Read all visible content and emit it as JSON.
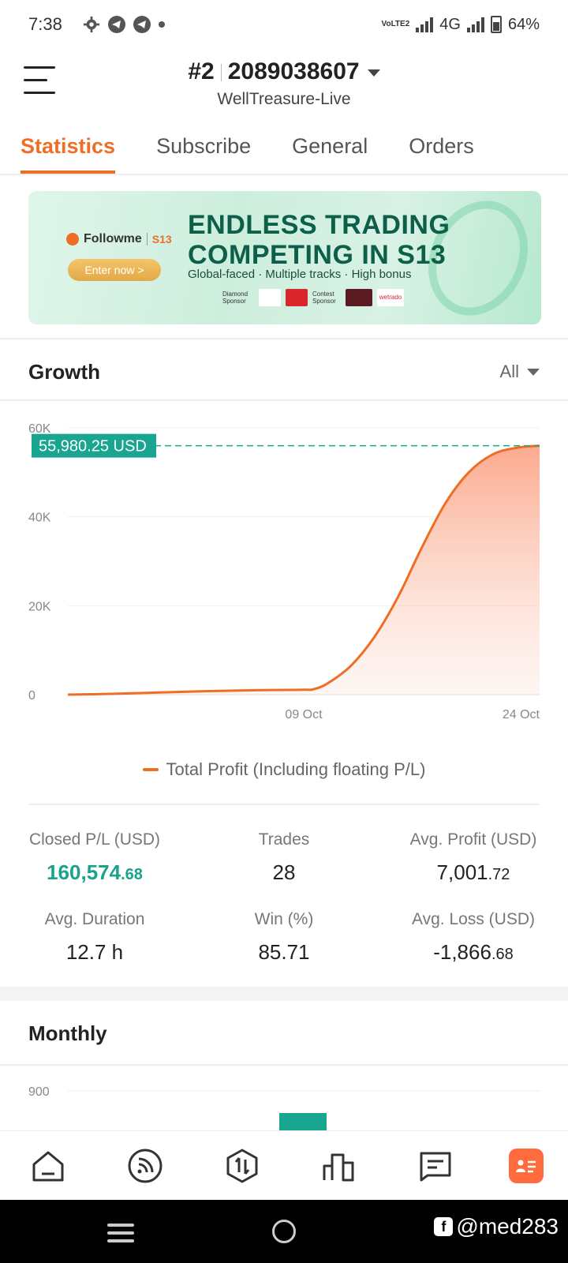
{
  "status_bar": {
    "time": "7:38",
    "network_label": "4G",
    "volte_label": "VoLTE2",
    "battery": "64%"
  },
  "header": {
    "account_rank": "#2",
    "account_number": "2089038607",
    "server": "WellTreasure-Live"
  },
  "tabs": [
    {
      "label": "Statistics",
      "active": true
    },
    {
      "label": "Subscribe",
      "active": false
    },
    {
      "label": "General",
      "active": false
    },
    {
      "label": "Orders",
      "active": false
    }
  ],
  "banner": {
    "brand": "Followme",
    "brand_badge": "S13",
    "cta": "Enter now >",
    "headline_line1": "ENDLESS TRADING",
    "headline_line2": "COMPETING IN S13",
    "subline": "Global-faced · Multiple tracks · High bonus",
    "sponsor_label_1": "Diamond Sponsor",
    "sponsor_label_2": "Contest Sponsor",
    "sponsor_logo_text": "wetrado"
  },
  "growth": {
    "title": "Growth",
    "range": "All",
    "legend": "Total Profit (Including floating P/L)"
  },
  "chart_data": {
    "type": "area",
    "title": "",
    "xlabel": "",
    "ylabel": "",
    "ylim": [
      0,
      60000
    ],
    "y_ticks": [
      "0",
      "20K",
      "40K",
      "60K"
    ],
    "x_ticks": [
      "09 Oct",
      "24 Oct"
    ],
    "current_value_label": "55,980.25 USD",
    "current_value": 55980.25,
    "series": [
      {
        "name": "Total Profit (Including floating P/L)",
        "x": [
          0,
          0.1,
          0.2,
          0.3,
          0.4,
          0.5,
          0.52,
          0.55,
          0.6,
          0.65,
          0.7,
          0.75,
          0.8,
          0.85,
          0.9,
          0.95,
          1.0
        ],
        "values": [
          0,
          200,
          500,
          800,
          1000,
          1100,
          1200,
          2500,
          6500,
          13000,
          22000,
          33000,
          43000,
          50000,
          54000,
          55500,
          55980.25
        ]
      }
    ]
  },
  "stats": {
    "closed_pl_label": "Closed P/L (USD)",
    "closed_pl_int": "160,574",
    "closed_pl_dec": ".68",
    "trades_label": "Trades",
    "trades_value": "28",
    "avg_profit_label": "Avg. Profit (USD)",
    "avg_profit_int": "7,001",
    "avg_profit_dec": ".72",
    "avg_duration_label": "Avg. Duration",
    "avg_duration_value": "12.7 h",
    "win_label": "Win (%)",
    "win_value": "85.71",
    "avg_loss_label": "Avg. Loss (USD)",
    "avg_loss_int": "-1,866",
    "avg_loss_dec": ".68"
  },
  "monthly": {
    "title": "Monthly",
    "y_tick_top": "900"
  },
  "bottom_nav": [
    {
      "name": "home-icon"
    },
    {
      "name": "feed-icon"
    },
    {
      "name": "trade-icon"
    },
    {
      "name": "ranking-icon"
    },
    {
      "name": "message-icon"
    },
    {
      "name": "profile-icon"
    }
  ],
  "watermark": "@med283",
  "colors": {
    "accent": "#ed6e25",
    "positive": "#19a38c",
    "badge": "#1aa590"
  }
}
